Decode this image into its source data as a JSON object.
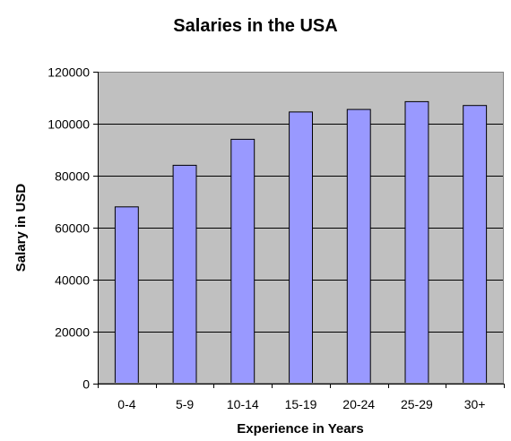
{
  "chart_data": {
    "type": "bar",
    "title": "Salaries in the USA",
    "xlabel": "Experience in Years",
    "ylabel": "Salary in USD",
    "categories": [
      "0-4",
      "5-9",
      "10-14",
      "15-19",
      "20-24",
      "25-29",
      "30+"
    ],
    "values": [
      68000,
      84000,
      94000,
      104500,
      105500,
      108500,
      107000
    ],
    "ylim": [
      0,
      120000
    ],
    "yticks": [
      "0",
      "20000",
      "40000",
      "60000",
      "80000",
      "100000",
      "120000"
    ],
    "grid": true,
    "legend": false,
    "colors": {
      "bar_fill": "#9999ff",
      "bar_stroke": "#000000",
      "plot_background": "#c0c0c0",
      "grid_line": "#000000"
    }
  }
}
